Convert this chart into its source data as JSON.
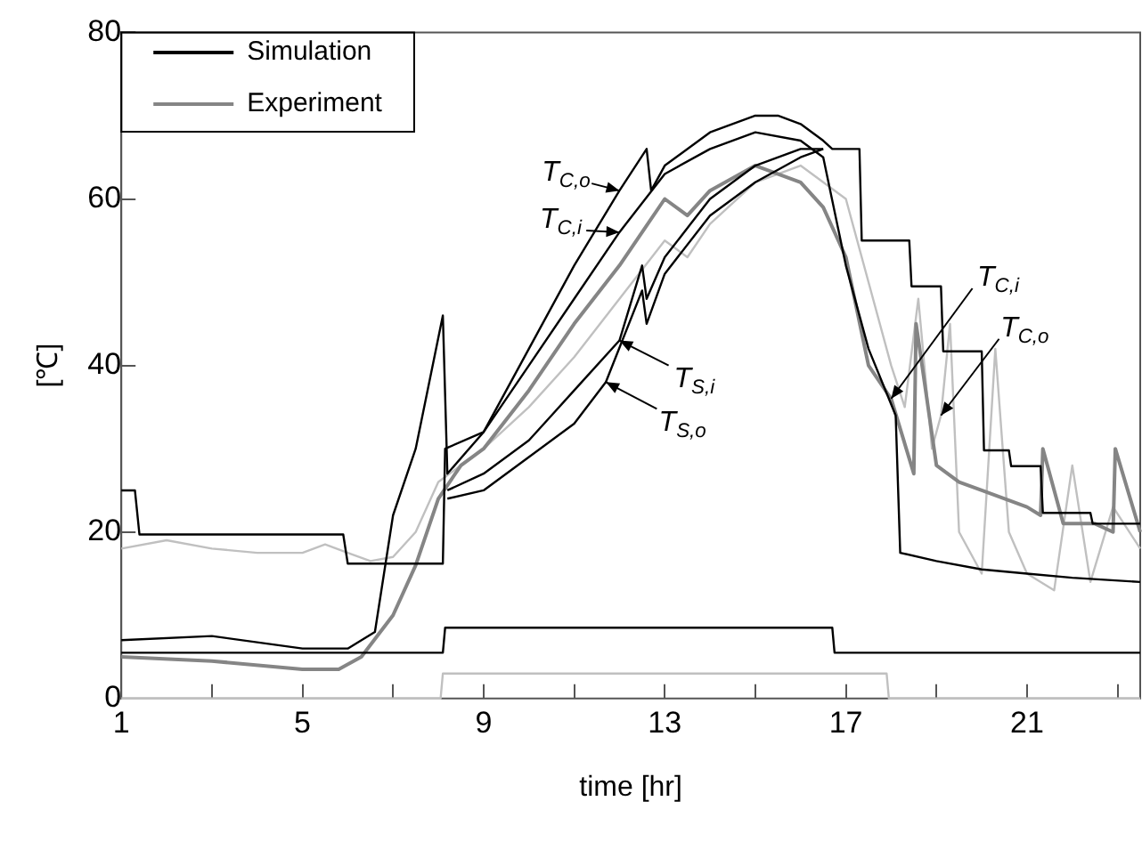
{
  "chart_data": {
    "type": "line",
    "xlabel": "time [hr]",
    "ylabel": "[℃]",
    "xlim": [
      1,
      23.5
    ],
    "ylim": [
      0,
      80
    ],
    "xticks": [
      1,
      {
        "value": 3,
        "label": null
      },
      5,
      {
        "value": 7,
        "label": null
      },
      9,
      {
        "value": 11,
        "label": null
      },
      13,
      {
        "value": 15,
        "label": null
      },
      17,
      {
        "value": 19,
        "label": null
      },
      21,
      {
        "value": 23,
        "label": null
      }
    ],
    "yticks": [
      0,
      20,
      40,
      60,
      80
    ],
    "grid": false,
    "legend": "top left",
    "marker": "none",
    "line_style": "solid",
    "annotations": [
      {
        "text": "T$_{C,o}$",
        "x": 12,
        "y": 61
      },
      {
        "text": "T$_{C,i}$",
        "x": 12,
        "y": 56
      },
      {
        "text": "T$_{S,i}$",
        "x": 12,
        "y": 43
      },
      {
        "text": "T$_{S,o}$",
        "x": 11.7,
        "y": 38
      },
      {
        "text": "T$_{C,i}$",
        "x": 18,
        "y": 36
      },
      {
        "text": "T$_{C,o}$",
        "x": 19.1,
        "y": 34
      }
    ],
    "series": [
      {
        "name": "Simulation",
        "color": "#000000",
        "x": [
          1,
          1.3,
          1.4,
          5.9,
          6.0,
          8.1,
          8.15,
          9,
          10,
          11,
          12,
          12.6,
          12.7,
          13,
          14,
          15,
          15.5,
          16,
          16.5,
          16.7,
          17.3,
          17.35,
          18.4,
          18.45,
          19.1,
          19.15,
          20,
          20.05,
          20.6,
          20.65,
          21.3,
          21.35,
          22.4,
          22.45,
          23.5
        ],
        "values": [
          25,
          25,
          19.7,
          19.7,
          16.2,
          16.2,
          30,
          32,
          42,
          52,
          61,
          66,
          61,
          64,
          68,
          70,
          70,
          69,
          67,
          66,
          66,
          55,
          55,
          49.5,
          49.5,
          41.7,
          41.7,
          29.8,
          29.8,
          27.9,
          27.9,
          22.3,
          22.3,
          21,
          21
        ]
      },
      {
        "color": "#000000",
        "x": [
          1,
          3,
          5,
          6,
          6.6,
          7,
          7.5,
          8.1,
          8.2,
          9,
          10,
          11,
          12,
          13,
          14,
          15,
          16,
          16.5,
          17,
          17.5,
          18.1,
          18.2,
          19,
          20,
          21,
          22,
          23.5
        ],
        "values": [
          7,
          7.5,
          6,
          6,
          8,
          22,
          30,
          46,
          27,
          32,
          40,
          48,
          56,
          63,
          66,
          68,
          67,
          65,
          52,
          42,
          34,
          17.5,
          16.5,
          15.5,
          15,
          14.5,
          14
        ]
      },
      {
        "color": "#000000",
        "x": [
          8.2,
          9,
          10,
          10.5,
          11,
          12,
          12.5,
          12.6,
          13,
          14,
          15,
          16,
          16.5
        ],
        "values": [
          25,
          27,
          31,
          34,
          37,
          43,
          52,
          48,
          53,
          60,
          64,
          66,
          66
        ]
      },
      {
        "color": "#000000",
        "x": [
          8.2,
          9,
          10,
          11,
          11.7,
          12.5,
          12.6,
          13,
          14,
          15,
          16,
          16.5
        ],
        "values": [
          24,
          25,
          29,
          33,
          38,
          49,
          45,
          51,
          58,
          62,
          65,
          66
        ]
      },
      {
        "color": "#000000",
        "x": [
          1,
          8.1,
          8.15,
          16.7,
          16.75,
          23.5
        ],
        "values": [
          5.5,
          5.5,
          8.5,
          8.5,
          5.5,
          5.5
        ]
      },
      {
        "name": "Experiment",
        "color": "#858585",
        "x": [
          1,
          3,
          5,
          5.8,
          6.3,
          7,
          7.5,
          8,
          8.5,
          9,
          10,
          11,
          12,
          13,
          13.5,
          14,
          15,
          16,
          16.5,
          17,
          17.5,
          18,
          18.5,
          18.55,
          19,
          19.5,
          20,
          21,
          21.3,
          21.35,
          21.8,
          22.5,
          22.9,
          22.95,
          23.5
        ],
        "values": [
          5,
          4.5,
          3.5,
          3.5,
          5,
          10,
          16,
          24,
          28,
          30,
          37,
          45,
          52,
          60,
          58,
          61,
          64,
          62,
          59,
          53,
          40,
          36,
          27,
          45,
          28,
          26,
          25,
          23,
          22,
          30,
          21,
          21,
          20,
          30,
          20
        ]
      },
      {
        "color": "#c0c0c0",
        "x": [
          1,
          2,
          3,
          4,
          5,
          5.5,
          6,
          6.5,
          7,
          7.5,
          8,
          9,
          10,
          11,
          12,
          13,
          13.5,
          14,
          15,
          16,
          17,
          17.5,
          18,
          18.3,
          18.6,
          18.9,
          19.1,
          19.3,
          19.5,
          20,
          20.3,
          20.6,
          21,
          21.6,
          22,
          22.4,
          22.9,
          23.5
        ],
        "values": [
          18,
          19,
          18,
          17.5,
          17.5,
          18.5,
          17.5,
          16.5,
          17,
          20,
          26,
          30,
          35,
          41,
          48,
          55,
          53,
          57,
          62,
          64,
          60,
          50,
          40,
          35,
          48,
          30,
          34,
          45,
          20,
          15,
          42,
          20,
          15,
          13,
          28,
          14,
          23,
          18
        ]
      },
      {
        "color": "#c0c0c0",
        "x": [
          1,
          8.05,
          8.1,
          17.9,
          17.95,
          23.5
        ],
        "values": [
          0,
          0,
          3,
          3,
          0,
          0
        ]
      }
    ]
  }
}
